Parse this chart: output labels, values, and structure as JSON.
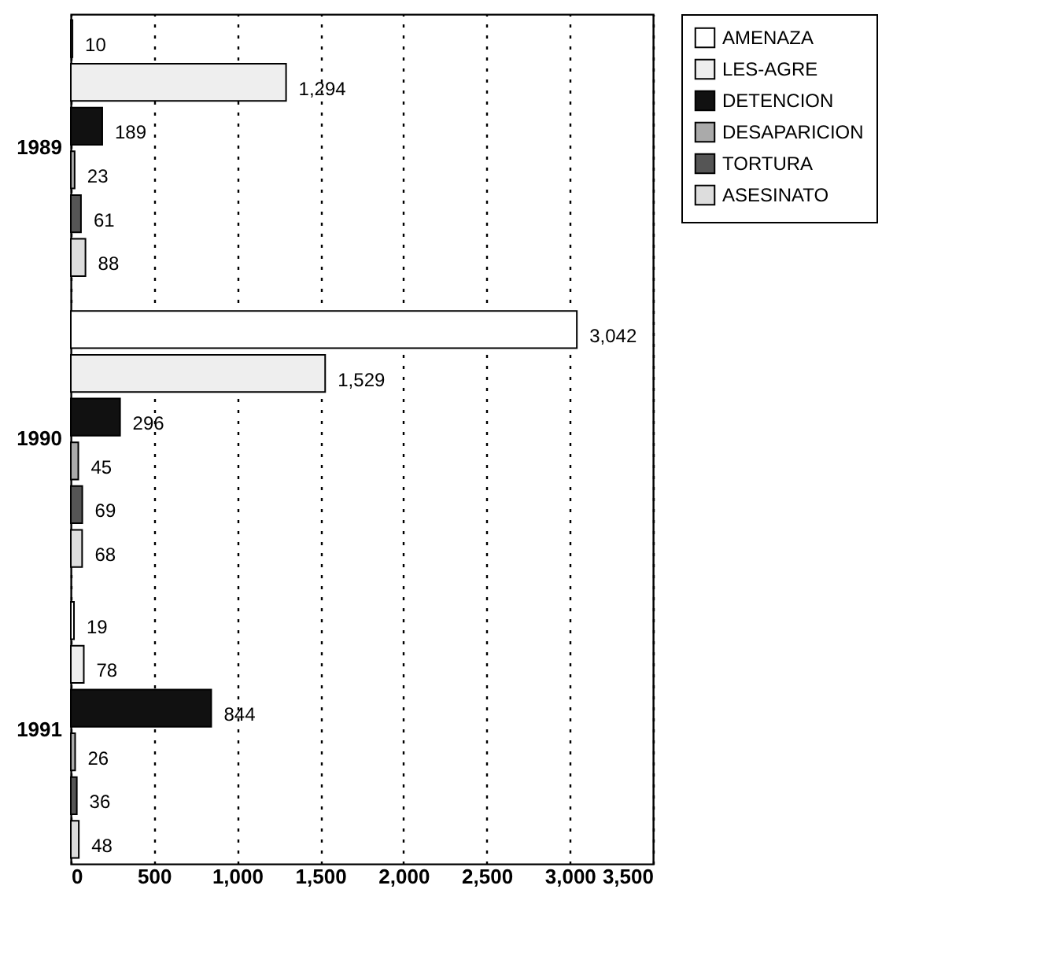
{
  "chart_data": {
    "type": "bar",
    "orientation": "horizontal",
    "categories": [
      "1989",
      "1990",
      "1991"
    ],
    "series": [
      {
        "name": "AMENAZA",
        "color": "#ffffff",
        "values": [
          10,
          3042,
          19
        ],
        "value_labels": [
          "10",
          "3,042",
          "19"
        ]
      },
      {
        "name": "LES-AGRE",
        "color": "#eeeeee",
        "values": [
          1294,
          1529,
          78
        ],
        "value_labels": [
          "1,294",
          "1,529",
          "78"
        ]
      },
      {
        "name": "DETENCION",
        "color": "#111111",
        "values": [
          189,
          296,
          844
        ],
        "value_labels": [
          "189",
          "296",
          "844"
        ]
      },
      {
        "name": "DESAPARICION",
        "color": "#aaaaaa",
        "values": [
          23,
          45,
          26
        ],
        "value_labels": [
          "23",
          "45",
          "26"
        ]
      },
      {
        "name": "TORTURA",
        "color": "#555555",
        "values": [
          61,
          69,
          36
        ],
        "value_labels": [
          "61",
          "69",
          "36"
        ]
      },
      {
        "name": "ASESINATO",
        "color": "#dddddd",
        "values": [
          88,
          68,
          48
        ],
        "value_labels": [
          "88",
          "68",
          "48"
        ]
      }
    ],
    "xlim": [
      0,
      3500
    ],
    "xticks": [
      0,
      500,
      {
        "value": 1000,
        "label": "1,000"
      },
      {
        "value": 1500,
        "label": "1,500"
      },
      {
        "value": 2000,
        "label": "2,000"
      },
      {
        "value": 2500,
        "label": "2,500"
      },
      {
        "value": 3000,
        "label": "3,000"
      },
      {
        "value": 3500,
        "label": "3,500"
      }
    ],
    "grid": "x",
    "legend": "right"
  }
}
